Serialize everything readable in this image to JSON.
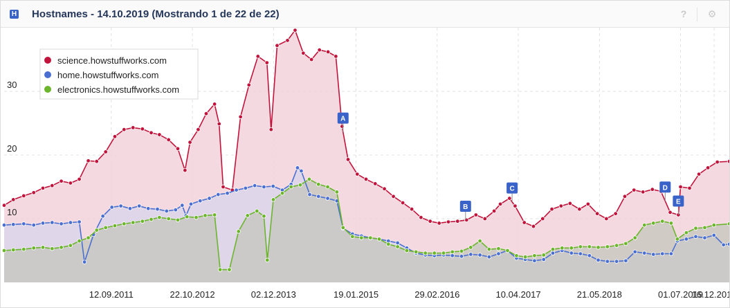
{
  "header": {
    "badge": "H",
    "title": "Hostnames - 14.10.2019 (Mostrando 1 de 22 de 22)",
    "help": "?",
    "gear": "⚙"
  },
  "chart_data": {
    "type": "area",
    "ylim": [
      0,
      40
    ],
    "yticks": [
      10,
      20,
      30
    ],
    "xlim": [
      "2010-03-25",
      "2020-03-01"
    ],
    "xticks": [
      {
        "date": "2011-09-12",
        "label": "12.09.2011"
      },
      {
        "date": "2012-10-22",
        "label": "22.10.2012"
      },
      {
        "date": "2013-12-02",
        "label": "02.12.2013"
      },
      {
        "date": "2015-01-19",
        "label": "19.01.2015"
      },
      {
        "date": "2016-02-29",
        "label": "29.02.2016"
      },
      {
        "date": "2017-04-10",
        "label": "10.04.2017"
      },
      {
        "date": "2018-05-21",
        "label": "21.05.2018"
      },
      {
        "date": "2019-07-01",
        "label": "01.07.2019"
      },
      {
        "date": "2019-12-16",
        "label": "16.12.2019"
      }
    ],
    "grid": true,
    "legend": "top-left",
    "series": [
      {
        "name": "science.howstuffworks.com",
        "color": "#c0143c",
        "fill": "#f2d3da",
        "points": [
          [
            "2010-03-25",
            12.1
          ],
          [
            "2010-05-10",
            13.0
          ],
          [
            "2010-07-01",
            13.6
          ],
          [
            "2010-08-20",
            14.1
          ],
          [
            "2010-10-05",
            14.8
          ],
          [
            "2010-11-20",
            15.2
          ],
          [
            "2011-01-05",
            15.9
          ],
          [
            "2011-02-20",
            15.6
          ],
          [
            "2011-04-05",
            16.2
          ],
          [
            "2011-05-20",
            19.1
          ],
          [
            "2011-07-01",
            19.0
          ],
          [
            "2011-08-15",
            20.5
          ],
          [
            "2011-09-30",
            22.9
          ],
          [
            "2011-11-15",
            24.0
          ],
          [
            "2011-12-30",
            24.3
          ],
          [
            "2012-02-15",
            24.1
          ],
          [
            "2012-03-30",
            23.5
          ],
          [
            "2012-05-10",
            23.2
          ],
          [
            "2012-06-25",
            22.4
          ],
          [
            "2012-08-10",
            21.0
          ],
          [
            "2012-09-15",
            17.6
          ],
          [
            "2012-10-10",
            22.0
          ],
          [
            "2012-11-20",
            24.0
          ],
          [
            "2012-12-30",
            26.5
          ],
          [
            "2013-02-10",
            28.0
          ],
          [
            "2013-03-05",
            24.9
          ],
          [
            "2013-03-25",
            15.0
          ],
          [
            "2013-05-10",
            14.5
          ],
          [
            "2013-06-20",
            26.0
          ],
          [
            "2013-08-01",
            31.0
          ],
          [
            "2013-09-15",
            35.5
          ],
          [
            "2013-10-30",
            34.5
          ],
          [
            "2013-11-20",
            24.0
          ],
          [
            "2013-12-20",
            37.2
          ],
          [
            "2014-02-10",
            38.0
          ],
          [
            "2014-03-20",
            39.6
          ],
          [
            "2014-04-30",
            36.0
          ],
          [
            "2014-06-10",
            35.0
          ],
          [
            "2014-07-20",
            36.5
          ],
          [
            "2014-09-01",
            36.2
          ],
          [
            "2014-10-10",
            35.5
          ],
          [
            "2014-11-10",
            24.5
          ],
          [
            "2014-12-10",
            19.3
          ],
          [
            "2015-01-25",
            17.0
          ],
          [
            "2015-03-10",
            16.2
          ],
          [
            "2015-04-25",
            15.5
          ],
          [
            "2015-06-10",
            14.7
          ],
          [
            "2015-07-25",
            13.5
          ],
          [
            "2015-09-10",
            12.5
          ],
          [
            "2015-10-25",
            11.5
          ],
          [
            "2015-12-10",
            10.2
          ],
          [
            "2016-01-25",
            9.6
          ],
          [
            "2016-03-10",
            9.3
          ],
          [
            "2016-04-25",
            9.5
          ],
          [
            "2016-06-10",
            9.6
          ],
          [
            "2016-07-25",
            9.8
          ],
          [
            "2016-09-10",
            10.6
          ],
          [
            "2016-10-25",
            10.0
          ],
          [
            "2016-12-10",
            11.2
          ],
          [
            "2017-01-10",
            12.3
          ],
          [
            "2017-02-25",
            13.2
          ],
          [
            "2017-03-25",
            12.0
          ],
          [
            "2017-05-10",
            9.4
          ],
          [
            "2017-06-25",
            8.8
          ],
          [
            "2017-08-10",
            10.0
          ],
          [
            "2017-09-25",
            11.5
          ],
          [
            "2017-11-10",
            12.0
          ],
          [
            "2017-12-25",
            12.4
          ],
          [
            "2018-02-10",
            11.5
          ],
          [
            "2018-03-25",
            12.3
          ],
          [
            "2018-05-10",
            10.8
          ],
          [
            "2018-06-25",
            10.0
          ],
          [
            "2018-08-10",
            10.8
          ],
          [
            "2018-09-25",
            13.5
          ],
          [
            "2018-11-10",
            14.5
          ],
          [
            "2018-12-25",
            14.2
          ],
          [
            "2019-02-10",
            14.6
          ],
          [
            "2019-03-25",
            14.3
          ],
          [
            "2019-05-10",
            11.0
          ],
          [
            "2019-06-20",
            10.6
          ],
          [
            "2019-07-01",
            15.0
          ],
          [
            "2019-08-15",
            14.8
          ],
          [
            "2019-10-01",
            17.0
          ],
          [
            "2019-11-15",
            18.0
          ],
          [
            "2020-01-01",
            18.9
          ],
          [
            "2020-03-01",
            19.0
          ]
        ]
      },
      {
        "name": "home.howstuffworks.com",
        "color": "#4a6fd1",
        "fill": "#d6d4ec",
        "points": [
          [
            "2010-03-25",
            9.0
          ],
          [
            "2010-05-10",
            9.1
          ],
          [
            "2010-07-01",
            9.2
          ],
          [
            "2010-08-20",
            9.0
          ],
          [
            "2010-10-05",
            9.3
          ],
          [
            "2010-11-20",
            9.4
          ],
          [
            "2011-01-05",
            9.2
          ],
          [
            "2011-02-20",
            9.4
          ],
          [
            "2011-04-05",
            9.5
          ],
          [
            "2011-05-01",
            3.2
          ],
          [
            "2011-06-15",
            7.5
          ],
          [
            "2011-08-01",
            10.4
          ],
          [
            "2011-09-15",
            11.8
          ],
          [
            "2011-10-30",
            12.0
          ],
          [
            "2011-12-15",
            11.6
          ],
          [
            "2012-01-30",
            12.0
          ],
          [
            "2012-03-15",
            11.6
          ],
          [
            "2012-04-30",
            11.5
          ],
          [
            "2012-06-15",
            11.2
          ],
          [
            "2012-07-30",
            11.4
          ],
          [
            "2012-09-01",
            12.1
          ],
          [
            "2012-09-20",
            10.5
          ],
          [
            "2012-10-15",
            12.3
          ],
          [
            "2012-11-30",
            12.8
          ],
          [
            "2013-01-15",
            13.2
          ],
          [
            "2013-02-28",
            13.8
          ],
          [
            "2013-04-15",
            14.0
          ],
          [
            "2013-05-30",
            14.5
          ],
          [
            "2013-07-15",
            14.8
          ],
          [
            "2013-08-30",
            15.2
          ],
          [
            "2013-10-15",
            15.0
          ],
          [
            "2013-11-30",
            15.1
          ],
          [
            "2014-01-15",
            14.5
          ],
          [
            "2014-02-28",
            15.4
          ],
          [
            "2014-04-01",
            18.0
          ],
          [
            "2014-04-20",
            17.5
          ],
          [
            "2014-06-01",
            13.8
          ],
          [
            "2014-07-15",
            13.5
          ],
          [
            "2014-08-30",
            13.2
          ],
          [
            "2014-10-15",
            12.8
          ],
          [
            "2014-11-15",
            8.5
          ],
          [
            "2015-01-01",
            7.6
          ],
          [
            "2015-02-15",
            7.3
          ],
          [
            "2015-04-01",
            7.0
          ],
          [
            "2015-05-15",
            6.8
          ],
          [
            "2015-06-30",
            6.5
          ],
          [
            "2015-08-15",
            6.2
          ],
          [
            "2015-09-30",
            5.4
          ],
          [
            "2015-11-15",
            4.6
          ],
          [
            "2016-01-01",
            4.3
          ],
          [
            "2016-02-15",
            4.2
          ],
          [
            "2016-04-01",
            4.3
          ],
          [
            "2016-05-15",
            4.2
          ],
          [
            "2016-06-30",
            4.1
          ],
          [
            "2016-08-15",
            4.4
          ],
          [
            "2016-09-30",
            4.3
          ],
          [
            "2016-11-15",
            4.0
          ],
          [
            "2017-01-01",
            4.5
          ],
          [
            "2017-02-15",
            5.0
          ],
          [
            "2017-04-01",
            3.8
          ],
          [
            "2017-05-15",
            3.6
          ],
          [
            "2017-06-30",
            3.4
          ],
          [
            "2017-08-15",
            3.6
          ],
          [
            "2017-09-30",
            4.6
          ],
          [
            "2017-11-15",
            5.0
          ],
          [
            "2018-01-01",
            4.6
          ],
          [
            "2018-02-15",
            4.5
          ],
          [
            "2018-04-01",
            4.2
          ],
          [
            "2018-05-15",
            3.5
          ],
          [
            "2018-06-30",
            3.3
          ],
          [
            "2018-08-15",
            3.3
          ],
          [
            "2018-09-30",
            3.4
          ],
          [
            "2018-11-15",
            4.8
          ],
          [
            "2019-01-01",
            4.6
          ],
          [
            "2019-02-15",
            4.4
          ],
          [
            "2019-04-01",
            4.5
          ],
          [
            "2019-05-15",
            4.5
          ],
          [
            "2019-06-15",
            6.5
          ],
          [
            "2019-07-30",
            6.8
          ],
          [
            "2019-09-15",
            7.2
          ],
          [
            "2019-10-30",
            7.0
          ],
          [
            "2019-12-15",
            7.4
          ],
          [
            "2020-02-01",
            5.9
          ],
          [
            "2020-03-01",
            6.0
          ]
        ]
      },
      {
        "name": "electronics.howstuffworks.com",
        "color": "#6cb52d",
        "fill": "#c2c5bb",
        "points": [
          [
            "2010-03-25",
            5.0
          ],
          [
            "2010-05-10",
            5.1
          ],
          [
            "2010-07-01",
            5.2
          ],
          [
            "2010-08-20",
            5.4
          ],
          [
            "2010-10-05",
            5.5
          ],
          [
            "2010-11-20",
            5.3
          ],
          [
            "2011-01-05",
            5.5
          ],
          [
            "2011-02-20",
            5.8
          ],
          [
            "2011-04-05",
            6.5
          ],
          [
            "2011-05-20",
            7.0
          ],
          [
            "2011-07-01",
            8.2
          ],
          [
            "2011-08-15",
            8.6
          ],
          [
            "2011-09-30",
            8.9
          ],
          [
            "2011-11-15",
            9.2
          ],
          [
            "2011-12-30",
            9.4
          ],
          [
            "2012-02-15",
            9.6
          ],
          [
            "2012-03-30",
            9.9
          ],
          [
            "2012-05-10",
            10.2
          ],
          [
            "2012-06-25",
            10.0
          ],
          [
            "2012-08-10",
            9.8
          ],
          [
            "2012-09-25",
            10.3
          ],
          [
            "2012-11-10",
            10.2
          ],
          [
            "2012-12-25",
            10.5
          ],
          [
            "2013-02-10",
            10.6
          ],
          [
            "2013-03-10",
            2.0
          ],
          [
            "2013-04-25",
            2.0
          ],
          [
            "2013-06-10",
            8.0
          ],
          [
            "2013-07-25",
            10.5
          ],
          [
            "2013-09-10",
            11.2
          ],
          [
            "2013-10-15",
            10.4
          ],
          [
            "2013-11-01",
            3.5
          ],
          [
            "2013-12-01",
            13.0
          ],
          [
            "2014-01-15",
            14.0
          ],
          [
            "2014-02-28",
            15.0
          ],
          [
            "2014-04-15",
            15.3
          ],
          [
            "2014-05-30",
            16.2
          ],
          [
            "2014-07-15",
            15.4
          ],
          [
            "2014-08-30",
            15.0
          ],
          [
            "2014-10-15",
            14.2
          ],
          [
            "2014-11-15",
            8.6
          ],
          [
            "2015-01-01",
            7.2
          ],
          [
            "2015-02-15",
            7.0
          ],
          [
            "2015-04-01",
            7.0
          ],
          [
            "2015-05-15",
            6.8
          ],
          [
            "2015-06-30",
            6.0
          ],
          [
            "2015-08-15",
            5.6
          ],
          [
            "2015-09-30",
            5.0
          ],
          [
            "2015-11-15",
            4.8
          ],
          [
            "2016-01-01",
            4.6
          ],
          [
            "2016-02-15",
            4.6
          ],
          [
            "2016-04-01",
            4.6
          ],
          [
            "2016-05-15",
            4.8
          ],
          [
            "2016-06-30",
            4.9
          ],
          [
            "2016-08-15",
            5.5
          ],
          [
            "2016-09-30",
            6.5
          ],
          [
            "2016-11-15",
            5.2
          ],
          [
            "2017-01-01",
            5.3
          ],
          [
            "2017-02-15",
            5.0
          ],
          [
            "2017-04-01",
            4.2
          ],
          [
            "2017-05-15",
            4.0
          ],
          [
            "2017-06-30",
            4.2
          ],
          [
            "2017-08-15",
            4.3
          ],
          [
            "2017-09-30",
            5.2
          ],
          [
            "2017-11-15",
            5.4
          ],
          [
            "2018-01-01",
            5.4
          ],
          [
            "2018-02-15",
            5.6
          ],
          [
            "2018-04-01",
            5.6
          ],
          [
            "2018-05-15",
            5.5
          ],
          [
            "2018-06-30",
            5.6
          ],
          [
            "2018-08-15",
            5.8
          ],
          [
            "2018-09-30",
            6.1
          ],
          [
            "2018-11-15",
            7.0
          ],
          [
            "2019-01-01",
            9.0
          ],
          [
            "2019-02-15",
            9.3
          ],
          [
            "2019-04-01",
            9.6
          ],
          [
            "2019-05-15",
            9.3
          ],
          [
            "2019-06-15",
            6.8
          ],
          [
            "2019-07-30",
            7.8
          ],
          [
            "2019-09-15",
            8.5
          ],
          [
            "2019-10-30",
            8.6
          ],
          [
            "2019-12-15",
            9.0
          ],
          [
            "2020-03-01",
            9.2
          ]
        ]
      }
    ],
    "markers": [
      {
        "label": "A",
        "date": "2014-11-15"
      },
      {
        "label": "B",
        "date": "2016-07-20"
      },
      {
        "label": "C",
        "date": "2017-03-10"
      },
      {
        "label": "D",
        "date": "2019-04-15"
      },
      {
        "label": "E",
        "date": "2019-06-20"
      }
    ]
  }
}
